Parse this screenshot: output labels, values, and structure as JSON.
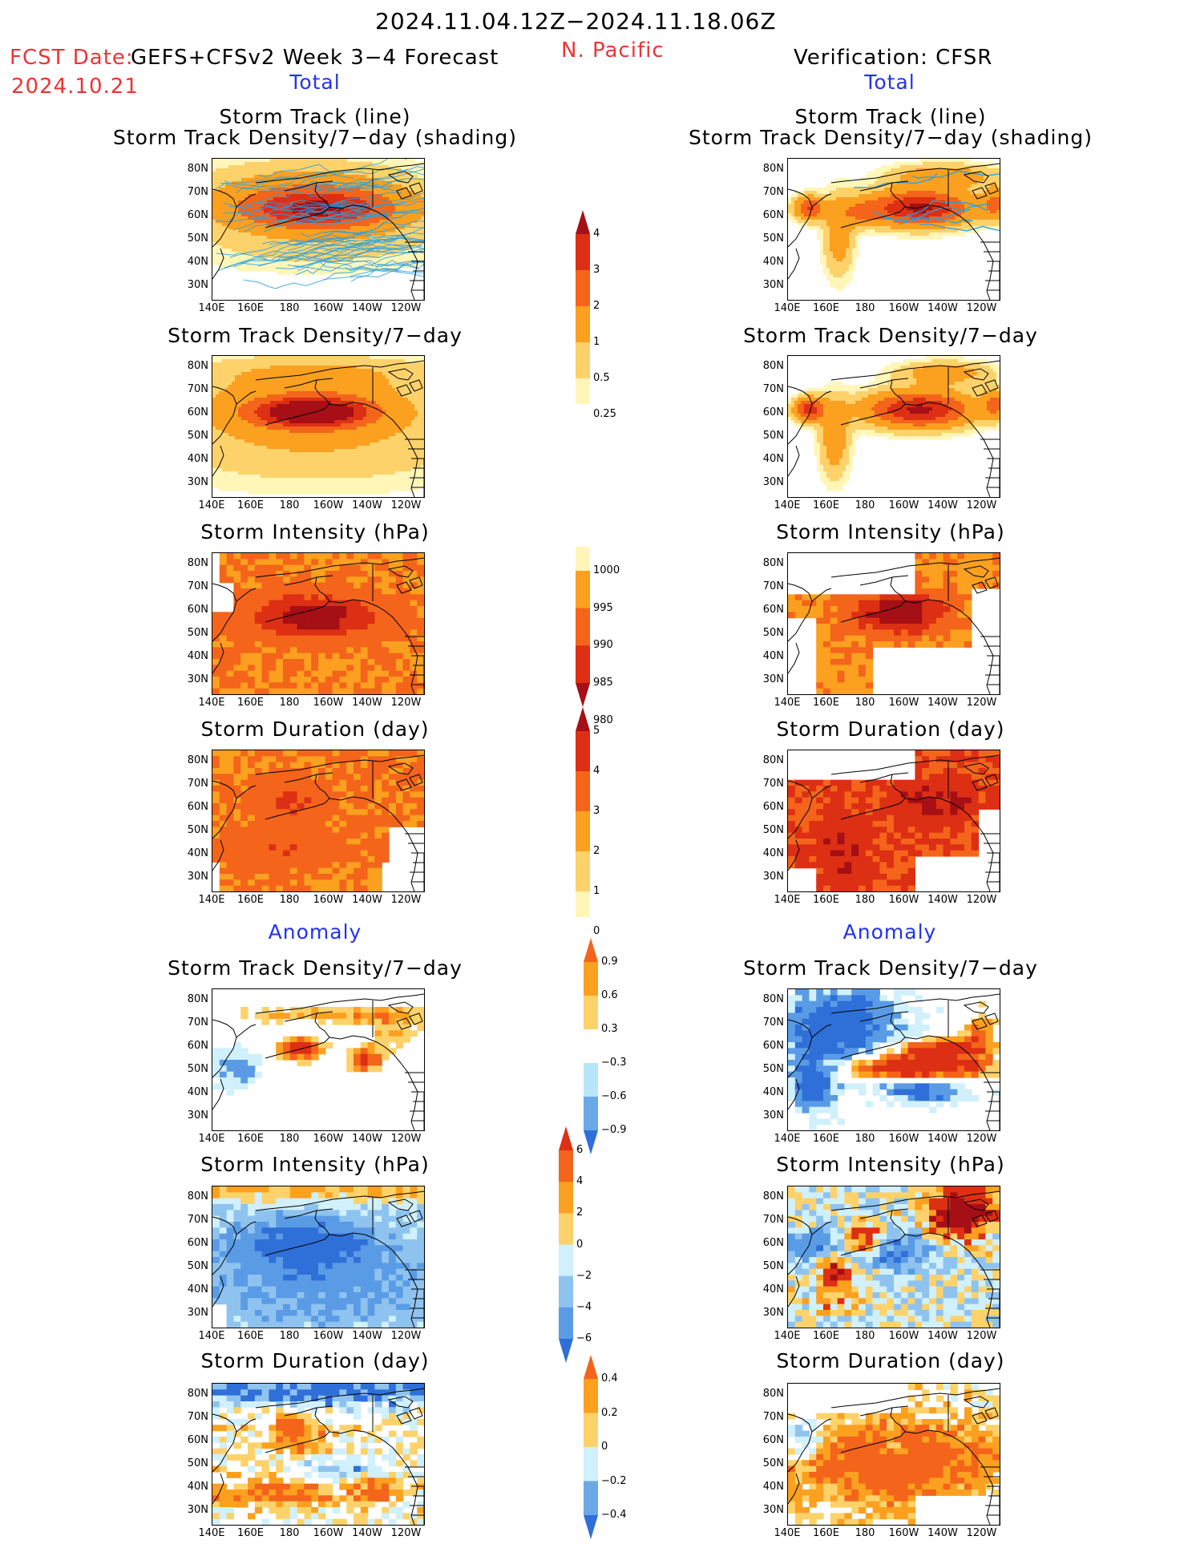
{
  "header": {
    "period": "2024.11.04.12Z−2024.11.18.06Z",
    "region": "N. Pacific",
    "fcst_label": "FCST Date:",
    "fcst_date": "2024.10.21",
    "model": "GEFS+CFSv2 Week 3−4 Forecast",
    "verification": "Verification: CFSR"
  },
  "sections": {
    "total": "Total",
    "anomaly": "Anomaly"
  },
  "panel_titles": {
    "track_line": "Storm Track (line)",
    "track_shading": "Storm Track Density/7−day (shading)",
    "density": "Storm Track Density/7−day",
    "intensity": "Storm Intensity (hPa)",
    "duration": "Storm Duration (day)"
  },
  "axes": {
    "lat_labels": [
      "80N",
      "70N",
      "60N",
      "50N",
      "40N",
      "30N"
    ],
    "lon_labels": [
      "140E",
      "160E",
      "180",
      "160W",
      "140W",
      "120W"
    ]
  },
  "colorbars": [
    {
      "id": "density",
      "labels": [
        "4",
        "3",
        "2",
        "1",
        "0.5",
        "0.25"
      ],
      "colors": [
        "#a50f15",
        "#dc2f14",
        "#f4641a",
        "#fba01f",
        "#fdd26a",
        "#fff6b8"
      ]
    },
    {
      "id": "intensity",
      "labels": [
        "1000",
        "995",
        "990",
        "985",
        "980"
      ],
      "colors": [
        "#fff6b8",
        "#fba01f",
        "#f4641a",
        "#dc2f14",
        "#a50f15"
      ]
    },
    {
      "id": "duration",
      "labels": [
        "5",
        "4",
        "3",
        "2",
        "1",
        "0"
      ],
      "colors": [
        "#a50f15",
        "#dc2f14",
        "#f4641a",
        "#fba01f",
        "#fdd26a",
        "#fff6b8"
      ]
    },
    {
      "id": "anom_density",
      "labels": [
        "0.9",
        "0.6",
        "0.3",
        "−0.3",
        "−0.6",
        "−0.9"
      ],
      "colors": [
        "#f4641a",
        "#fba01f",
        "#fdd26a",
        "#ffffff",
        "#b8e6f8",
        "#6aa8e8",
        "#2f6fd8"
      ]
    },
    {
      "id": "anom_intensity",
      "labels": [
        "6",
        "4",
        "2",
        "0",
        "−2",
        "−4",
        "−6"
      ],
      "colors": [
        "#dc2f14",
        "#f4641a",
        "#fba01f",
        "#fdd26a",
        "#d0f0fb",
        "#8fc3ef",
        "#5a9be6",
        "#2f6fd8"
      ]
    },
    {
      "id": "anom_duration",
      "labels": [
        "0.4",
        "0.2",
        "0",
        "−0.2",
        "−0.4"
      ],
      "colors": [
        "#f4641a",
        "#fba01f",
        "#fdd26a",
        "#d0f0fb",
        "#6aa8e8",
        "#2f6fd8"
      ]
    }
  ],
  "palette": {
    "warm_dark": "#a50f15",
    "warm_red": "#dc2f14",
    "warm_orange": "#f4641a",
    "warm_amber": "#fba01f",
    "warm_light": "#fdd26a",
    "warm_pale": "#fff6b8",
    "cool_pale": "#d0f0fb",
    "cool_mid": "#8fc3ef",
    "cool_blue": "#5a9be6",
    "cool_dark": "#2f6fd8",
    "track_line": "#2aa0e0",
    "header_red": "#ee3333",
    "section_blue": "#2233ee"
  }
}
